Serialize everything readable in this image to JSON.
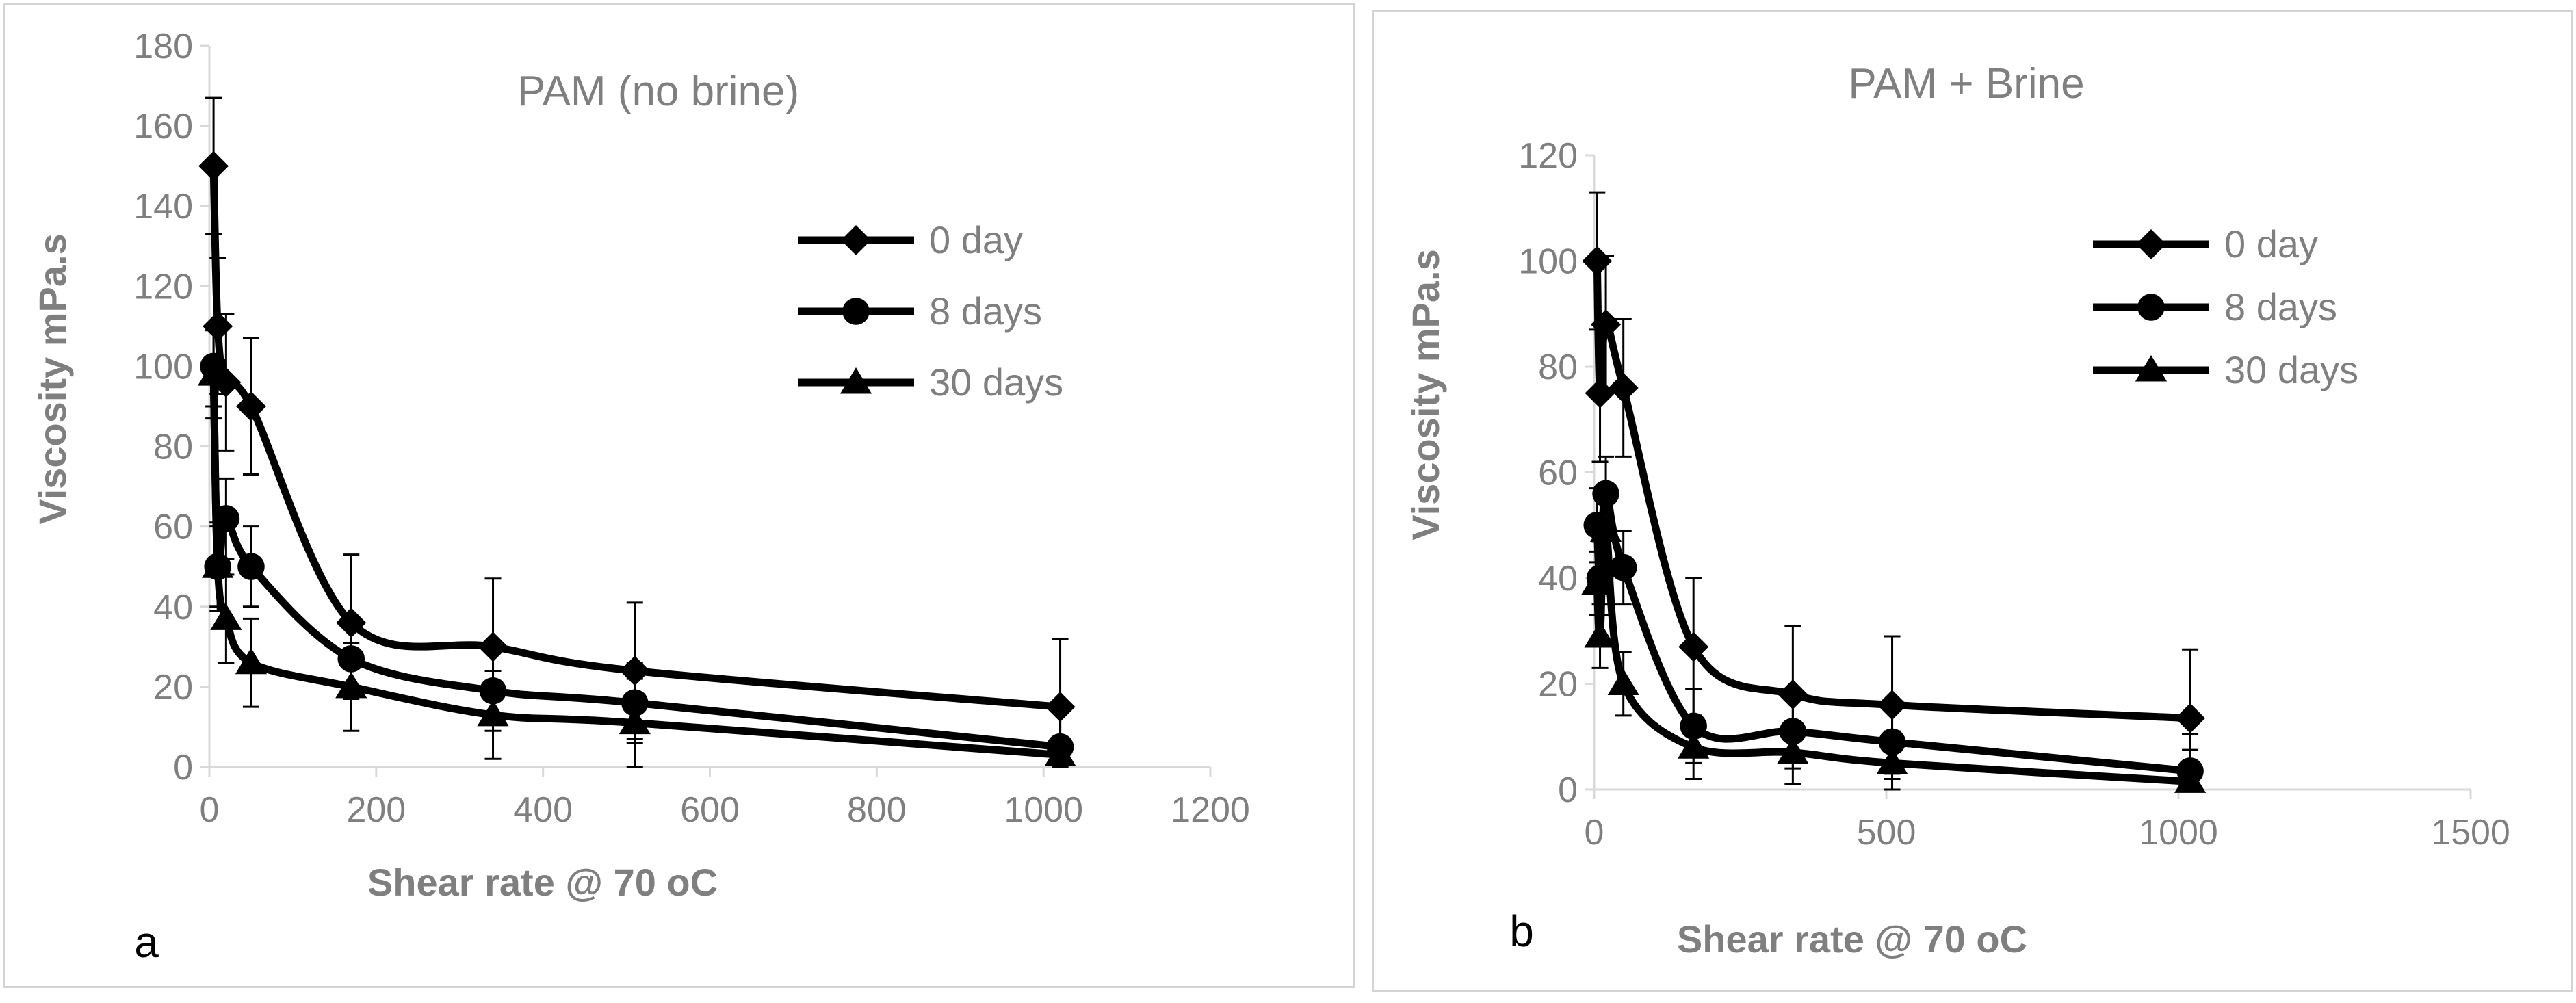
{
  "chart_data": [
    {
      "type": "line",
      "panel_label": "a",
      "title": "PAM (no brine)",
      "xlabel": "Shear rate @ 70 oC",
      "ylabel": "Viscosity mPa.s",
      "xlim": [
        0,
        1200
      ],
      "ylim": [
        0,
        180
      ],
      "xticks": [
        0,
        200,
        400,
        600,
        800,
        1000,
        1200
      ],
      "yticks": [
        0,
        20,
        40,
        60,
        80,
        100,
        120,
        140,
        160,
        180
      ],
      "legend_position": "right",
      "series": [
        {
          "name": "0 day",
          "marker": "diamond",
          "x": [
            5,
            10,
            20,
            50,
            170,
            340,
            510,
            1020
          ],
          "y": [
            150,
            110,
            96,
            90,
            36,
            30,
            24,
            15
          ],
          "error": [
            17,
            17,
            17,
            17,
            17,
            17,
            17,
            17
          ]
        },
        {
          "name": "8 days",
          "marker": "circle",
          "x": [
            5,
            10,
            20,
            50,
            170,
            340,
            510,
            1020
          ],
          "y": [
            100,
            50,
            62,
            50,
            27,
            19,
            16,
            5
          ],
          "error": [
            10,
            10,
            10,
            10,
            10,
            10,
            10,
            10
          ]
        },
        {
          "name": "30 days",
          "marker": "triangle",
          "x": [
            5,
            10,
            20,
            50,
            170,
            340,
            510,
            1020
          ],
          "y": [
            98,
            50,
            37,
            26,
            20,
            13,
            11,
            3
          ],
          "error": [
            11,
            11,
            11,
            11,
            11,
            11,
            11,
            11
          ]
        }
      ]
    },
    {
      "type": "line",
      "panel_label": "b",
      "title": "PAM + Brine",
      "xlabel": "Shear rate @ 70 oC",
      "ylabel": "Viscosity mPa.s",
      "xlim": [
        0,
        1500
      ],
      "ylim": [
        0,
        120
      ],
      "xticks": [
        0,
        500,
        1000,
        1500
      ],
      "yticks": [
        0,
        20,
        40,
        60,
        80,
        100,
        120
      ],
      "legend_position": "right",
      "series": [
        {
          "name": "0 day",
          "marker": "diamond",
          "x": [
            5,
            10,
            20,
            50,
            170,
            340,
            510,
            1020
          ],
          "y": [
            100,
            75,
            88,
            76,
            27,
            18,
            16,
            13.5
          ],
          "error": [
            13,
            13,
            13,
            13,
            13,
            13,
            13,
            13
          ]
        },
        {
          "name": "8 days",
          "marker": "circle",
          "x": [
            5,
            10,
            20,
            50,
            170,
            340,
            510,
            1020
          ],
          "y": [
            50,
            40,
            56,
            42,
            12,
            11,
            9,
            3.5
          ],
          "error": [
            7,
            7,
            7,
            7,
            7,
            7,
            7,
            7
          ]
        },
        {
          "name": "30 days",
          "marker": "triangle",
          "x": [
            5,
            10,
            20,
            50,
            170,
            340,
            510,
            1020
          ],
          "y": [
            39,
            29,
            49,
            20,
            8,
            7,
            5,
            1.5
          ],
          "error": [
            6,
            6,
            6,
            6,
            6,
            6,
            6,
            6
          ]
        }
      ]
    }
  ]
}
